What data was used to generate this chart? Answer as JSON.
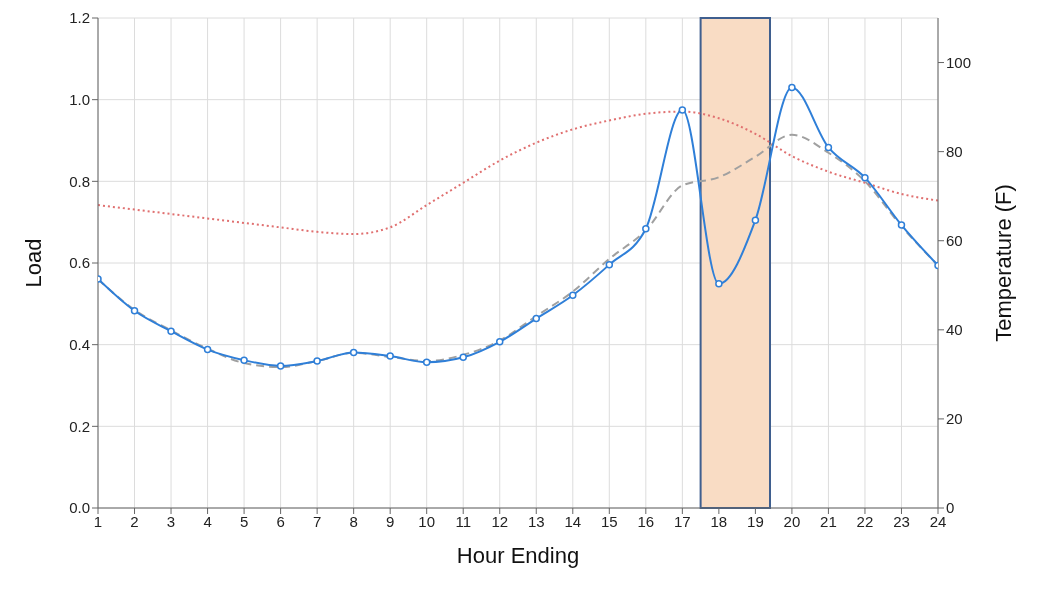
{
  "chart_data": {
    "type": "line",
    "xlabel": "Hour Ending",
    "ylabel": "Load",
    "y2label": "Temperature (F)",
    "x": [
      1,
      2,
      3,
      4,
      5,
      6,
      7,
      8,
      9,
      10,
      11,
      12,
      13,
      14,
      15,
      16,
      17,
      18,
      19,
      20,
      21,
      22,
      23,
      24
    ],
    "xlim": [
      1,
      24
    ],
    "xticks": [
      1,
      2,
      3,
      4,
      5,
      6,
      7,
      8,
      9,
      10,
      11,
      12,
      13,
      14,
      15,
      16,
      17,
      18,
      19,
      20,
      21,
      22,
      23,
      24
    ],
    "ylim": [
      0,
      1.2
    ],
    "yticks": [
      {
        "value": 0,
        "label": "0.0"
      },
      {
        "value": 0.2,
        "label": "0.2"
      },
      {
        "value": 0.4,
        "label": "0.4"
      },
      {
        "value": 0.6,
        "label": "0.6"
      },
      {
        "value": 0.8,
        "label": "0.8"
      },
      {
        "value": 1,
        "label": "1.0"
      },
      {
        "value": 1.2,
        "label": "1.2"
      }
    ],
    "y2lim": [
      0,
      110
    ],
    "y2ticks": [
      0,
      20,
      40,
      60,
      80,
      100
    ],
    "grid": true,
    "series": [
      {
        "color": "#a0a0a0",
        "line_style": "dashed",
        "marker": "none",
        "values": [
          0.56,
          0.485,
          0.435,
          0.39,
          0.355,
          0.345,
          0.36,
          0.38,
          0.37,
          0.36,
          0.375,
          0.41,
          0.47,
          0.53,
          0.61,
          0.68,
          0.79,
          0.81,
          0.86,
          0.914,
          0.87,
          0.8,
          0.69,
          0.594
        ]
      },
      {
        "color": "#e07070",
        "line_style": "dotted",
        "marker": "none",
        "axis": "y2",
        "values": [
          68,
          67,
          66,
          65,
          64,
          63,
          62,
          61.5,
          63,
          68,
          73,
          78,
          82,
          85,
          87,
          88.5,
          89,
          87.5,
          84,
          79,
          75.5,
          73,
          70.5,
          69
        ]
      },
      {
        "color": "#2f7fd8",
        "line_style": "solid",
        "marker": "circle",
        "values": [
          0.561,
          0.483,
          0.433,
          0.388,
          0.362,
          0.348,
          0.36,
          0.381,
          0.372,
          0.357,
          0.369,
          0.407,
          0.464,
          0.521,
          0.596,
          0.684,
          0.975,
          0.549,
          0.705,
          1.03,
          0.883,
          0.809,
          0.693,
          0.594
        ]
      }
    ],
    "bands": [
      {
        "axis": "x",
        "from": 17.5,
        "to": 19.4,
        "color": "#f9dcc4"
      }
    ]
  }
}
